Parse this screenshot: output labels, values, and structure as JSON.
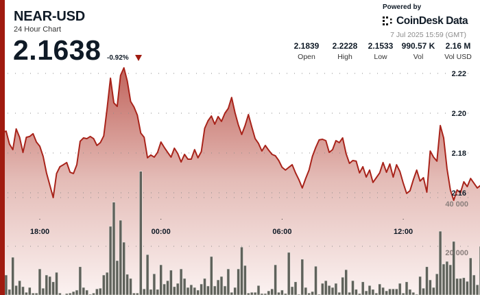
{
  "header": {
    "symbol": "NEAR-USD",
    "subtitle": "24 Hour Chart",
    "price": "2.1638",
    "change": "-0.92%",
    "change_direction_icon": "triangle-down-icon",
    "powered_by": "Powered by",
    "brand": "CoinDesk Data",
    "timestamp": "7 Jul 2025 15:59 (GMT)"
  },
  "stats": [
    {
      "value": "2.1839",
      "label": "Open"
    },
    {
      "value": "2.2228",
      "label": "High"
    },
    {
      "value": "2.1533",
      "label": "Low"
    },
    {
      "value": "990.57 K",
      "label": "Vol"
    },
    {
      "value": "2.16 M",
      "label": "Vol USD"
    }
  ],
  "colors": {
    "accent": "#a01b10",
    "line": "#a8231a",
    "volume_bars": "#5f625b"
  },
  "chart_data": {
    "type": "area",
    "grid": true,
    "price_ticks": [
      "2.22",
      "2.20",
      "2.18",
      "2.16"
    ],
    "volume_ticks": [
      "40 000",
      "20 000"
    ],
    "x_ticks": [
      "18:00",
      "00:00",
      "06:00",
      "12:00"
    ],
    "price_range": [
      2.1533,
      2.2228
    ],
    "x": [
      "16:10",
      "16:20",
      "16:30",
      "16:40",
      "16:50",
      "17:00",
      "17:10",
      "17:20",
      "17:30",
      "17:40",
      "17:50",
      "18:00",
      "18:10",
      "18:20",
      "18:30",
      "18:40",
      "18:50",
      "19:00",
      "19:10",
      "19:20",
      "19:30",
      "19:40",
      "19:50",
      "20:00",
      "20:10",
      "20:20",
      "20:30",
      "20:40",
      "20:50",
      "21:00",
      "21:10",
      "21:20",
      "21:30",
      "21:40",
      "21:50",
      "22:00",
      "22:10",
      "22:20",
      "22:30",
      "22:40",
      "22:50",
      "23:00",
      "23:10",
      "23:20",
      "23:30",
      "23:40",
      "23:50",
      "00:00",
      "00:10",
      "00:20",
      "00:30",
      "00:40",
      "00:50",
      "01:00",
      "01:10",
      "01:20",
      "01:30",
      "01:40",
      "01:50",
      "02:00",
      "02:10",
      "02:20",
      "02:30",
      "02:40",
      "02:50",
      "03:00",
      "03:10",
      "03:20",
      "03:30",
      "03:40",
      "03:50",
      "04:00",
      "04:10",
      "04:20",
      "04:30",
      "04:40",
      "04:50",
      "05:00",
      "05:10",
      "05:20",
      "05:30",
      "05:40",
      "05:50",
      "06:00",
      "06:10",
      "06:20",
      "06:30",
      "06:40",
      "06:50",
      "07:00",
      "07:10",
      "07:20",
      "07:30",
      "07:40",
      "07:50",
      "08:00",
      "08:10",
      "08:20",
      "08:30",
      "08:40",
      "08:50",
      "09:00",
      "09:10",
      "09:20",
      "09:30",
      "09:40",
      "09:50",
      "10:00",
      "10:10",
      "10:20",
      "10:30",
      "10:40",
      "10:50",
      "11:00",
      "11:10",
      "11:20",
      "11:30",
      "11:40",
      "11:50",
      "12:00",
      "12:10",
      "12:20",
      "12:30",
      "12:40",
      "12:50",
      "13:00",
      "13:10",
      "13:20",
      "13:30",
      "13:40",
      "13:50",
      "14:00",
      "14:10",
      "14:20",
      "14:30",
      "14:40",
      "14:50",
      "15:00",
      "15:10",
      "15:20",
      "15:30",
      "15:40",
      "15:50"
    ],
    "price": [
      2.1903,
      2.191,
      2.1845,
      2.1817,
      2.1921,
      2.1879,
      2.1803,
      2.1879,
      2.1883,
      2.1897,
      2.1855,
      2.1834,
      2.1783,
      2.17,
      2.1638,
      2.1576,
      2.1697,
      2.1731,
      2.1741,
      2.1752,
      2.1703,
      2.1697,
      2.1741,
      2.1859,
      2.1876,
      2.1872,
      2.1883,
      2.1872,
      2.1838,
      2.1852,
      2.1886,
      2.2024,
      2.2176,
      2.2052,
      2.2034,
      2.219,
      2.2228,
      2.2162,
      2.2059,
      2.2031,
      2.199,
      2.19,
      2.1879,
      2.1776,
      2.179,
      2.1779,
      2.1803,
      2.1855,
      2.1828,
      2.1803,
      2.1779,
      2.1824,
      2.1797,
      2.1755,
      2.1793,
      2.1769,
      2.1769,
      2.1817,
      2.1776,
      2.1807,
      2.1924,
      2.1962,
      2.1986,
      2.1945,
      2.1983,
      2.1959,
      2.2,
      2.2024,
      2.2079,
      2.2003,
      2.1941,
      2.1893,
      2.1938,
      2.1993,
      2.1931,
      2.1872,
      2.1848,
      2.181,
      2.1838,
      2.1814,
      2.1793,
      2.1786,
      2.1762,
      2.1728,
      2.1714,
      2.1728,
      2.1741,
      2.17,
      2.1666,
      2.1624,
      2.1672,
      2.1714,
      2.1783,
      2.1828,
      2.1866,
      2.1869,
      2.1862,
      2.1803,
      2.1817,
      2.1862,
      2.1852,
      2.1876,
      2.1797,
      2.1748,
      2.1762,
      2.1759,
      2.17,
      2.1731,
      2.1679,
      2.1714,
      2.1652,
      2.1676,
      2.17,
      2.1752,
      2.1703,
      2.1745,
      2.1679,
      2.1741,
      2.1707,
      2.1648,
      2.1597,
      2.161,
      2.1666,
      2.1714,
      2.1659,
      2.1676,
      2.1603,
      2.181,
      2.1779,
      2.1759,
      2.1938,
      2.1876,
      2.1721,
      2.1614,
      2.1562,
      2.1614,
      2.16,
      2.1655,
      2.1631,
      2.1672,
      2.1648,
      2.1624,
      2.1638
    ],
    "volume": [
      3700,
      8200,
      2300,
      15500,
      3900,
      5900,
      3400,
      1100,
      3100,
      800,
      800,
      10700,
      2800,
      8200,
      7600,
      5400,
      9300,
      800,
      100,
      600,
      800,
      1400,
      2000,
      11600,
      3100,
      2000,
      300,
      800,
      2500,
      2800,
      8200,
      9300,
      28200,
      38100,
      14100,
      30700,
      21700,
      8500,
      6800,
      800,
      800,
      50800,
      2500,
      16600,
      2300,
      8700,
      2300,
      12400,
      4500,
      5900,
      10200,
      3400,
      4800,
      10700,
      6800,
      3100,
      4200,
      3100,
      2000,
      4500,
      6800,
      3700,
      15800,
      3700,
      6200,
      7600,
      3700,
      10700,
      1100,
      3100,
      10700,
      19700,
      12100,
      800,
      1100,
      1100,
      3900,
      600,
      600,
      1700,
      2500,
      12400,
      1100,
      2000,
      600,
      17500,
      3400,
      5400,
      300,
      14700,
      3100,
      800,
      1400,
      11800,
      300,
      4800,
      5900,
      3900,
      3100,
      4800,
      1100,
      7300,
      10400,
      1100,
      5900,
      2300,
      600,
      5400,
      1700,
      3900,
      2300,
      800,
      4500,
      3100,
      1700,
      2500,
      2500,
      2500,
      4800,
      800,
      5400,
      2300,
      1100,
      300,
      7600,
      2800,
      11600,
      6200,
      3100,
      8700,
      26200,
      12700,
      13800,
      12400,
      22000,
      6800,
      6800,
      7100,
      5600,
      15200,
      8200,
      4200,
      20000
    ]
  }
}
